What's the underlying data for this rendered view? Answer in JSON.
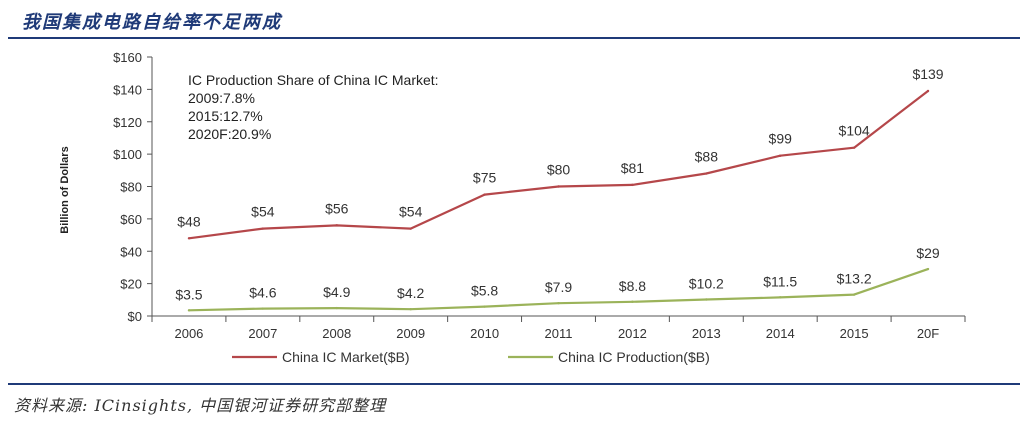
{
  "page": {
    "title": "我国集成电路自给率不足两成",
    "source": "资料来源: ICinsights, 中国银河证券研究部整理"
  },
  "chart_data": {
    "type": "line",
    "categories": [
      "2006",
      "2007",
      "2008",
      "2009",
      "2010",
      "2011",
      "2012",
      "2013",
      "2014",
      "2015",
      "20F"
    ],
    "ylabel": "Billion of Dollars",
    "ylim": [
      0,
      160
    ],
    "yticks": [
      "$0",
      "$20",
      "$40",
      "$60",
      "$80",
      "$100",
      "$120",
      "$140",
      "$160"
    ],
    "grid": false,
    "legend_position": "bottom",
    "annotation": [
      "IC Production Share of China IC Market:",
      "2009:7.8%",
      "2015:12.7%",
      "2020F:20.9%"
    ],
    "series": [
      {
        "name": "China IC Market($B)",
        "color": "#b5474a",
        "values": [
          48,
          54,
          56,
          54,
          75,
          80,
          81,
          88,
          99,
          104,
          139
        ],
        "labels": [
          "$48",
          "$54",
          "$56",
          "$54",
          "$75",
          "$80",
          "$81",
          "$88",
          "$99",
          "$104",
          "$139"
        ]
      },
      {
        "name": "China IC Production($B)",
        "color": "#9bb35a",
        "values": [
          3.5,
          4.6,
          4.9,
          4.2,
          5.8,
          7.9,
          8.8,
          10.2,
          11.5,
          13.2,
          29
        ],
        "labels": [
          "$3.5",
          "$4.6",
          "$4.9",
          "$4.2",
          "$5.8",
          "$7.9",
          "$8.8",
          "$10.2",
          "$11.5",
          "$13.2",
          "$29"
        ]
      }
    ]
  }
}
